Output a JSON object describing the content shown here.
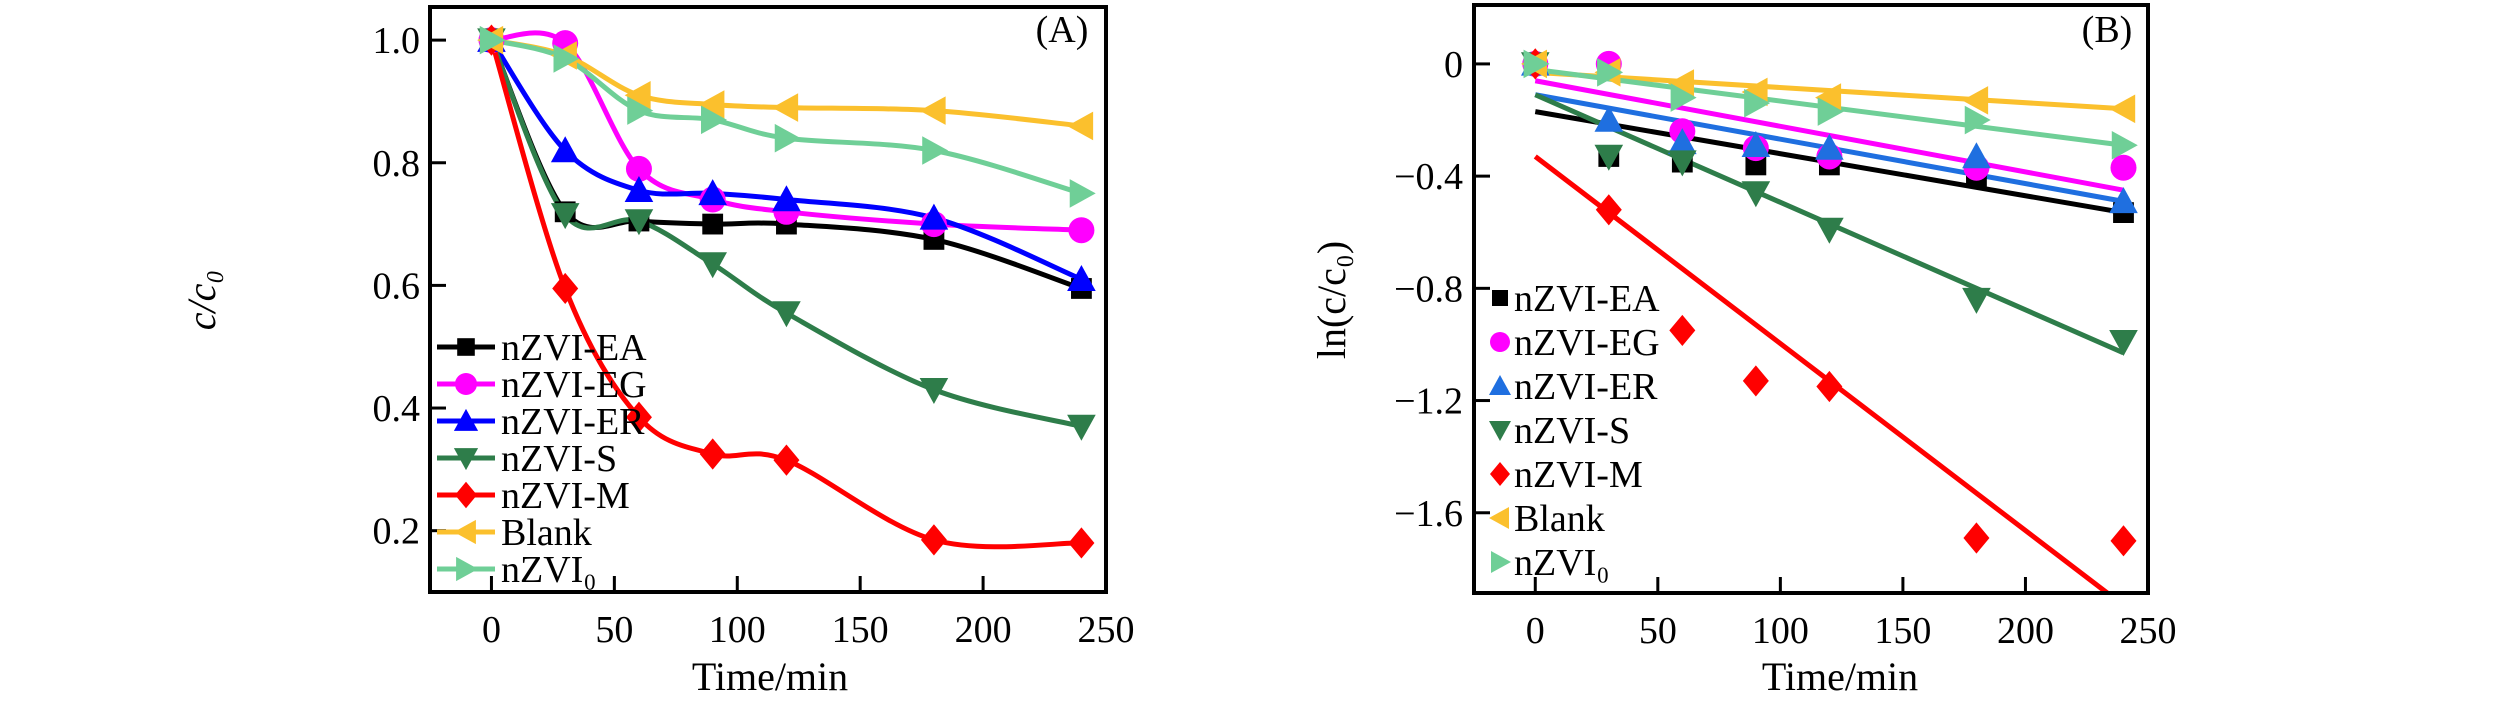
{
  "chart_data": [
    {
      "type": "line",
      "panel_label": "(A)",
      "xlabel": "Time/min",
      "ylabel": "c/c₀",
      "xlim": [
        -25,
        250
      ],
      "ylim": [
        0.1,
        1.054
      ],
      "xticks": [
        0,
        50,
        100,
        150,
        200,
        250
      ],
      "yticks": [
        0.2,
        0.4,
        0.6,
        0.8,
        1.0
      ],
      "ytick_labels": [
        "0.2",
        "0.4",
        "0.6",
        "0.8",
        "1.0"
      ],
      "legend_position": "bottom-left",
      "fit": "smooth",
      "x": [
        0,
        30,
        60,
        90,
        120,
        180,
        240
      ],
      "series": [
        {
          "name": "nZVI-EA",
          "marker": "square",
          "color": "#000000",
          "values": [
            1.0,
            0.72,
            0.705,
            0.7,
            0.7,
            0.675,
            0.595
          ]
        },
        {
          "name": "nZVI-EG",
          "marker": "circle",
          "color": "#ff00ff",
          "values": [
            1.0,
            0.995,
            0.79,
            0.74,
            0.72,
            0.7,
            0.69
          ]
        },
        {
          "name": "nZVI-ER",
          "marker": "triangle-up",
          "color": "#0000ff",
          "values": [
            1.0,
            0.82,
            0.755,
            0.75,
            0.74,
            0.71,
            0.61
          ]
        },
        {
          "name": "nZVI-S",
          "marker": "triangle-down",
          "color": "#2e7d4a",
          "values": [
            1.0,
            0.715,
            0.705,
            0.635,
            0.555,
            0.43,
            0.37
          ]
        },
        {
          "name": "nZVI-M",
          "marker": "diamond",
          "color": "#ff0000",
          "values": [
            1.0,
            0.595,
            0.385,
            0.325,
            0.315,
            0.185,
            0.18
          ]
        },
        {
          "name": "Blank",
          "marker": "triangle-left",
          "color": "#fbc02d",
          "values": [
            1.0,
            0.975,
            0.91,
            0.895,
            0.89,
            0.885,
            0.86
          ]
        },
        {
          "name": "nZVI₀",
          "marker": "triangle-right",
          "color": "#6fcf97",
          "values": [
            1.0,
            0.97,
            0.885,
            0.87,
            0.84,
            0.82,
            0.75
          ]
        }
      ]
    },
    {
      "type": "scatter",
      "panel_label": "(B)",
      "xlabel": "Time/min",
      "ylabel": "ln(c/c₀)",
      "xlim": [
        -25,
        250
      ],
      "ylim": [
        -1.886,
        0.21
      ],
      "xticks": [
        0,
        50,
        100,
        150,
        200,
        250
      ],
      "yticks": [
        0,
        -0.4,
        -0.8,
        -1.2,
        -1.6
      ],
      "ytick_labels": [
        "0",
        "−0.4",
        "−0.8",
        "−1.2",
        "−1.6"
      ],
      "legend_position": "bottom-left",
      "fit": "linear",
      "x": [
        0,
        30,
        60,
        90,
        120,
        180,
        240
      ],
      "series": [
        {
          "name": "nZVI-EA",
          "marker": "square",
          "color": "#000000",
          "values": [
            0,
            -0.33,
            -0.35,
            -0.36,
            -0.36,
            -0.4,
            -0.53
          ],
          "fit_line": [
            -0.17,
            -0.53
          ]
        },
        {
          "name": "nZVI-EG",
          "marker": "circle",
          "color": "#ff00ff",
          "values": [
            0,
            0,
            -0.24,
            -0.3,
            -0.33,
            -0.37,
            -0.37
          ],
          "fit_line": [
            -0.06,
            -0.45
          ]
        },
        {
          "name": "nZVI-ER",
          "marker": "triangle-up",
          "color": "#1f6fe0",
          "values": [
            0,
            -0.2,
            -0.28,
            -0.29,
            -0.3,
            -0.33,
            -0.49
          ],
          "fit_line": [
            -0.11,
            -0.49
          ]
        },
        {
          "name": "nZVI-S",
          "marker": "triangle-down",
          "color": "#2e7d4a",
          "values": [
            0,
            -0.33,
            -0.35,
            -0.46,
            -0.59,
            -0.84,
            -0.99
          ],
          "fit_line": [
            -0.11,
            -1.03
          ]
        },
        {
          "name": "nZVI-M",
          "marker": "diamond",
          "color": "#ff0000",
          "values": [
            0,
            -0.52,
            -0.95,
            -1.13,
            -1.15,
            -1.69,
            -1.7
          ],
          "fit_line": [
            -0.33,
            -1.93
          ]
        },
        {
          "name": "Blank",
          "marker": "triangle-left",
          "color": "#fbc02d",
          "values": [
            0,
            -0.03,
            -0.07,
            -0.1,
            -0.12,
            -0.13,
            -0.16
          ],
          "fit_line": [
            -0.03,
            -0.16
          ]
        },
        {
          "name": "nZVI₀",
          "marker": "triangle-right",
          "color": "#6fcf97",
          "values": [
            0,
            -0.03,
            -0.12,
            -0.14,
            -0.17,
            -0.2,
            -0.29
          ],
          "fit_line": [
            -0.02,
            -0.29
          ]
        }
      ]
    }
  ]
}
